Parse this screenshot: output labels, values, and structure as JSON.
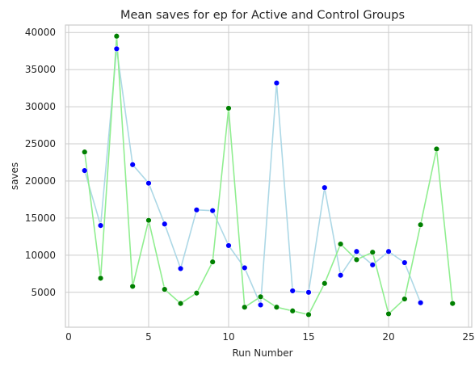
{
  "chart_data": {
    "type": "line",
    "title": "Mean saves for ep for Active and Control Groups",
    "xlabel": "Run Number",
    "ylabel": "saves",
    "xlim": [
      -0.2,
      25.2
    ],
    "ylim": [
      300,
      41000
    ],
    "xticks": [
      0,
      5,
      10,
      15,
      20,
      25
    ],
    "yticks": [
      5000,
      10000,
      15000,
      20000,
      25000,
      30000,
      35000,
      40000
    ],
    "grid": true,
    "background_color": "#ffffff",
    "grid_color": "#cccccc",
    "axis_color": "#cccccc",
    "text_color": "#262626",
    "series": [
      {
        "line_color": "#add8e6",
        "marker_color": "#0000ff",
        "x": [
          1,
          2,
          3,
          4,
          5,
          6,
          7,
          8,
          9,
          10,
          11,
          12,
          13,
          14,
          15,
          16,
          17,
          18,
          19,
          20,
          21,
          22
        ],
        "y": [
          21400,
          14000,
          37800,
          22200,
          19700,
          14200,
          8200,
          16100,
          16000,
          11300,
          8300,
          3300,
          33200,
          5200,
          5000,
          19100,
          7300,
          10500,
          8700,
          10500,
          9000,
          3600
        ]
      },
      {
        "line_color": "#90ee90",
        "marker_color": "#008000",
        "x": [
          1,
          2,
          3,
          4,
          5,
          6,
          7,
          8,
          9,
          10,
          11,
          12,
          13,
          14,
          15,
          16,
          17,
          18,
          19,
          20,
          21,
          22,
          23,
          24
        ],
        "y": [
          23900,
          6900,
          39500,
          5800,
          14700,
          5400,
          3500,
          4900,
          9100,
          29800,
          3000,
          4400,
          3000,
          2500,
          2000,
          6200,
          11500,
          9400,
          10400,
          2100,
          4100,
          14100,
          24300,
          3500
        ]
      }
    ]
  }
}
